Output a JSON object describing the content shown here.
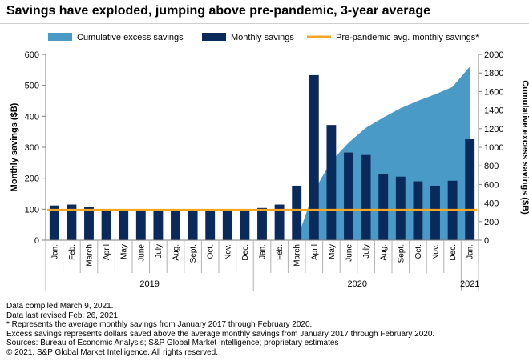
{
  "title": "Savings have exploded, jumping above pre-pandemic, 3-year average",
  "notes": [
    "Data compiled March 9, 2021.",
    "Data last revised Feb. 26, 2021.",
    "* Represents the average monthly savings from January 2017 through February 2020.",
    "Excess savings represents dollars saved above the average monthly savings from January 2017 through February 2020.",
    "Sources: Bureau of Economic Analysis; S&P Global Market Intelligence; proprietary estimates",
    "© 2021. S&P Global Market Intelligence. All rights reserved."
  ],
  "chart_data": {
    "type": "bar",
    "categories": [
      "Jan.",
      "Feb.",
      "March",
      "April",
      "May",
      "June",
      "July",
      "Aug.",
      "Sept.",
      "Oct.",
      "Nov.",
      "Dec.",
      "Jan.",
      "Feb.",
      "March",
      "April",
      "May",
      "June",
      "July",
      "Aug.",
      "Sept.",
      "Oct.",
      "Nov.",
      "Dec.",
      "Jan."
    ],
    "year_groups": [
      {
        "label": "2019",
        "start": 0,
        "end": 11
      },
      {
        "label": "2020",
        "start": 12,
        "end": 23
      },
      {
        "label": "2021",
        "start": 24,
        "end": 24
      }
    ],
    "series": [
      {
        "name": "Monthly savings",
        "type": "bar",
        "axis": "left",
        "color": "#0b2a5c",
        "values": [
          112,
          115,
          107,
          97,
          97,
          97,
          96,
          97,
          97,
          98,
          100,
          98,
          104,
          115,
          176,
          533,
          372,
          283,
          275,
          212,
          205,
          190,
          176,
          192,
          326
        ]
      },
      {
        "name": "Cumulative excess savings",
        "type": "area",
        "axis": "right",
        "color": "#4a9ac7",
        "values": [
          null,
          null,
          null,
          null,
          null,
          null,
          null,
          null,
          null,
          null,
          null,
          null,
          null,
          null,
          0,
          530,
          850,
          1050,
          1210,
          1320,
          1420,
          1500,
          1570,
          1650,
          1870
        ]
      },
      {
        "name": "Pre-pandemic avg. monthly savings*",
        "type": "line",
        "axis": "left",
        "color": "#f5a623",
        "value": 98
      }
    ],
    "ylabel": "Monthly savings ($B)",
    "y2label": "Cumulative excess savings ($B)",
    "ylim": [
      0,
      600
    ],
    "yticks": [
      0,
      100,
      200,
      300,
      400,
      500,
      600
    ],
    "y2lim": [
      0,
      2000
    ],
    "y2ticks": [
      0,
      200,
      400,
      600,
      800,
      1000,
      1200,
      1400,
      1600,
      1800,
      2000
    ],
    "legend_placement": "top",
    "grid": false
  }
}
